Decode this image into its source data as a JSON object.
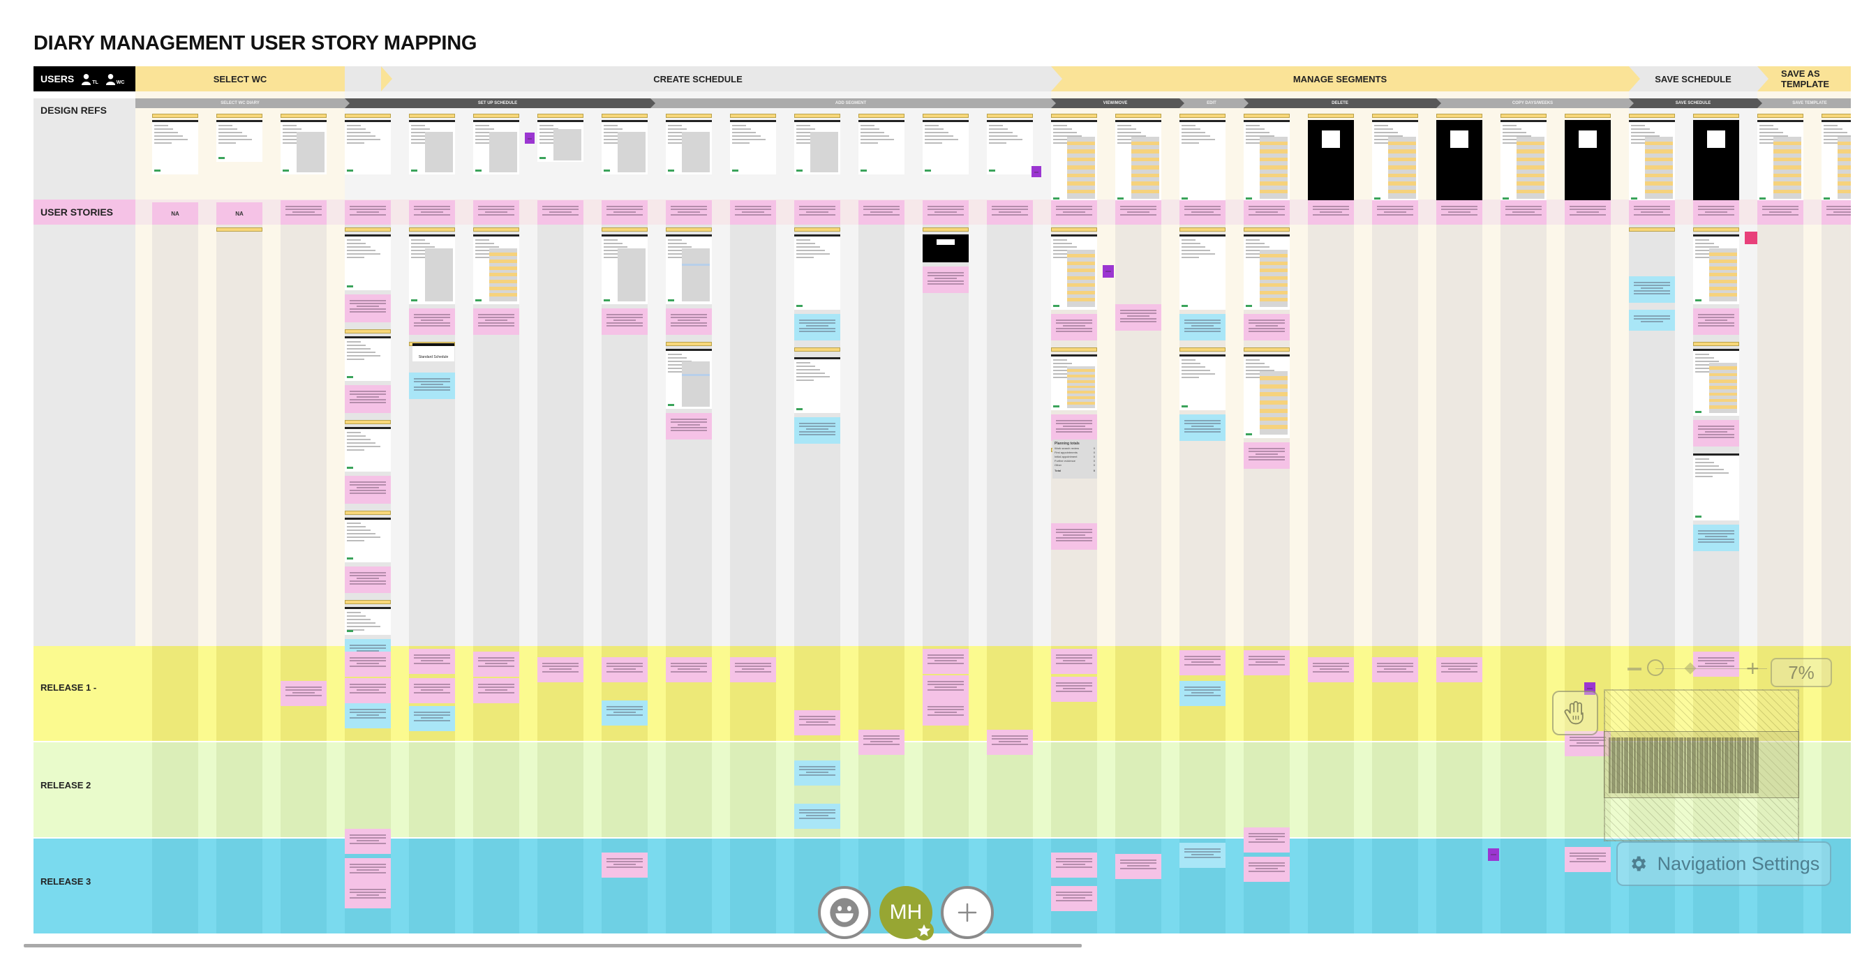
{
  "board": {
    "title": "DIARY MANAGEMENT USER STORY MAPPING",
    "users_label": "USERS",
    "user_roles": [
      "TL",
      "WC"
    ]
  },
  "activities": [
    {
      "label": "SELECT WC",
      "color": "yellow"
    },
    {
      "label": "CREATE SCHEDULE",
      "color": "grey"
    },
    {
      "label": "MANAGE SEGMENTS",
      "color": "yellow"
    },
    {
      "label": "SAVE SCHEDULE",
      "color": "grey"
    },
    {
      "label": "SAVE AS TEMPLATE",
      "color": "yellow"
    }
  ],
  "steps": [
    {
      "label": "SELECT WC DIARY",
      "style": "light"
    },
    {
      "label": "SET UP SCHEDULE",
      "style": "dark"
    },
    {
      "label": "ADD SEGMENT",
      "style": "light"
    },
    {
      "label": "VIEW/MOVE",
      "style": "dark"
    },
    {
      "label": "EDIT",
      "style": "light"
    },
    {
      "label": "DELETE",
      "style": "dark"
    },
    {
      "label": "COPY DAYS/WEEKS",
      "style": "light"
    },
    {
      "label": "SAVE SCHEDULE",
      "style": "dark"
    },
    {
      "label": "SAVE TEMPLATE",
      "style": "light"
    }
  ],
  "rows": {
    "design_refs": "DESIGN REFS",
    "user_stories": "USER STORIES",
    "release_1": "RELEASE 1 -",
    "release_2": "RELEASE 2",
    "release_3": "RELEASE 3"
  },
  "story_cards": {
    "na_1": "NA",
    "na_2": "NA"
  },
  "detail_cards": {
    "planning_totals_title": "Planning totals",
    "planning_totals_rows": [
      "Work search review",
      "First appointments",
      "Initial appointment",
      "Further evidence",
      "Other"
    ],
    "planning_totals_values": [
      "0",
      "0",
      "0",
      "0",
      "0"
    ],
    "planning_totals_total_label": "Total",
    "planning_totals_total_value": "0",
    "standard_schedule_label": "Standard Schedule"
  },
  "controls": {
    "zoom_level": "7%",
    "zoom_in": "+",
    "navigation_settings": "Navigation Settings",
    "avatar_initials": "MH",
    "add_label": "+"
  },
  "colors": {
    "activity_yellow": "#fae397",
    "activity_grey": "#e8e8e8",
    "step_dark": "#585858",
    "step_light": "#ababab",
    "sticky_pink": "#f5c2e6",
    "sticky_blue": "#a9e6f7",
    "sticky_purple": "#9b36d1",
    "release_1": "#fbfa8f",
    "release_2": "#e9fbcb",
    "release_3": "#7adaee",
    "avatar": "#97a633"
  }
}
